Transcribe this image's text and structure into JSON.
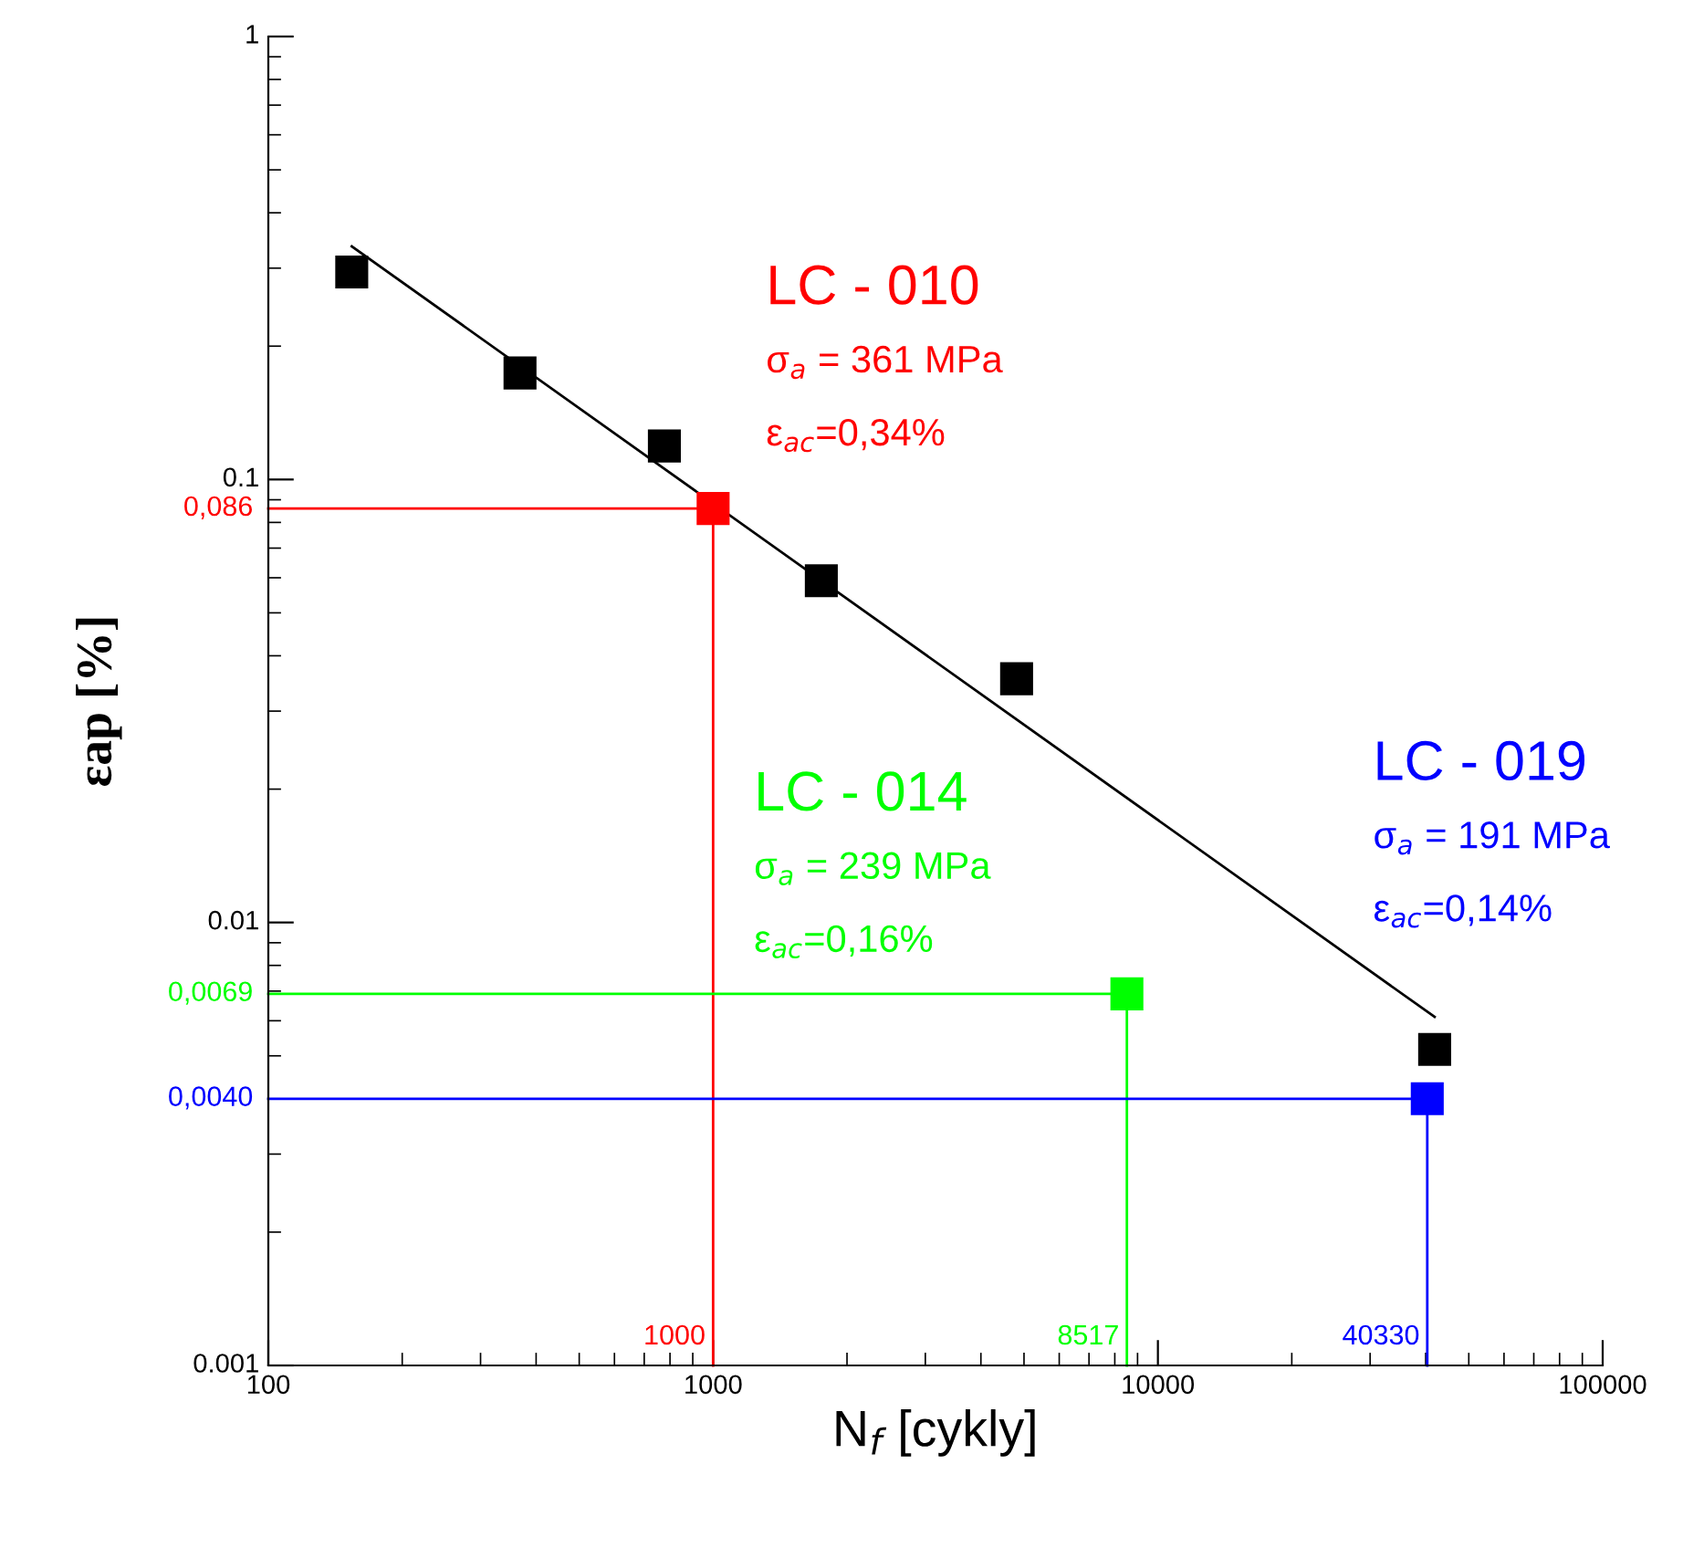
{
  "chart_data": {
    "type": "scatter",
    "xlabel": "N$_{f}$ [cykly]",
    "ylabel": "εap [%]",
    "log": "xy",
    "xlim": [
      100,
      100000
    ],
    "ylim": [
      0.001,
      1
    ],
    "xticks": [
      100,
      1000,
      10000,
      100000
    ],
    "yticks": [
      0.001,
      0.01,
      0.1,
      1
    ],
    "grid": false,
    "marker": "square",
    "series": [
      {
        "type": "line",
        "color": "#000000",
        "x": [
          154,
          41900
        ],
        "values": [
          0.336,
          0.00612
        ],
        "marker": "none"
      },
      {
        "color": "#000000",
        "x": [
          154,
          368,
          777,
          1751,
          4812,
          41900
        ],
        "values": [
          0.294,
          0.174,
          0.119,
          0.0591,
          0.0355,
          0.00517
        ]
      },
      {
        "type": "line",
        "color": "#ff0000",
        "x": [
          100,
          1000,
          1000
        ],
        "values": [
          0.086,
          0.086,
          0.001
        ],
        "marker": "none"
      },
      {
        "type": "line",
        "color": "#00ff00",
        "x": [
          100,
          8517,
          8517
        ],
        "values": [
          0.0069,
          0.0069,
          0.001
        ],
        "marker": "none"
      },
      {
        "type": "line",
        "color": "#0000ff",
        "x": [
          100,
          40330,
          40330
        ],
        "values": [
          0.004,
          0.004,
          0.001
        ],
        "marker": "none"
      },
      {
        "name": "LC - 010\nσ$_{a}$ = 361 MPa\nε$_{ac}$=0,34%",
        "color": "#ff0000",
        "x": [
          1000
        ],
        "values": [
          0.086
        ]
      },
      {
        "name": "LC - 014\nσ$_{a}$ = 239 MPa\nε$_{ac}$=0,16%",
        "color": "#00ff00",
        "x": [
          8517
        ],
        "values": [
          0.0069
        ]
      },
      {
        "name": "LC - 019\nσ$_{a}$ = 191 MPa\nε$_{ac}$=0,14%",
        "color": "#0000ff",
        "x": [
          40330
        ],
        "values": [
          0.004
        ]
      }
    ],
    "annotations": [
      {
        "text": "0,086",
        "x": 100,
        "y": 0.086
      },
      {
        "text": "1000",
        "x": 1000,
        "y": 0.001
      },
      {
        "text": "0,0069",
        "x": 100,
        "y": 0.0069
      },
      {
        "text": "8517",
        "x": 8517,
        "y": 0.001
      },
      {
        "text": "0,0040",
        "x": 100,
        "y": 0.004
      },
      {
        "text": "40330",
        "x": 40330,
        "y": 0.001
      }
    ]
  }
}
